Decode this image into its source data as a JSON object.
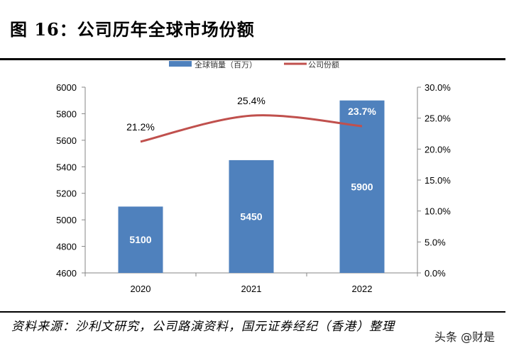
{
  "title": "图 16：公司历年全球市场份额",
  "source": "资料来源：沙利文研究，公司路演资料，国元证券经纪（香港）整理",
  "watermark": "头条 @财是",
  "chart_data": {
    "type": "bar+line",
    "categories": [
      "2020",
      "2021",
      "2022"
    ],
    "series": [
      {
        "name": "全球销量（百万）",
        "type": "bar",
        "axis": "left",
        "color": "#4F81BD",
        "values": [
          5100,
          5450,
          5900
        ],
        "labels": [
          "5100",
          "5450",
          "5900"
        ]
      },
      {
        "name": "公司份额",
        "type": "line",
        "axis": "right",
        "color": "#C0504D",
        "values": [
          21.2,
          25.4,
          23.7
        ],
        "labels": [
          "21.2%",
          "25.4%",
          "23.7%"
        ]
      }
    ],
    "y_left": {
      "range": [
        4600,
        6000
      ],
      "ticks": [
        "4600",
        "4800",
        "5000",
        "5200",
        "5400",
        "5600",
        "5800",
        "6000"
      ]
    },
    "y_right": {
      "range": [
        0,
        30
      ],
      "ticks": [
        "0.0%",
        "5.0%",
        "10.0%",
        "15.0%",
        "20.0%",
        "25.0%",
        "30.0%"
      ]
    },
    "legend_position": "top",
    "grid": false
  }
}
